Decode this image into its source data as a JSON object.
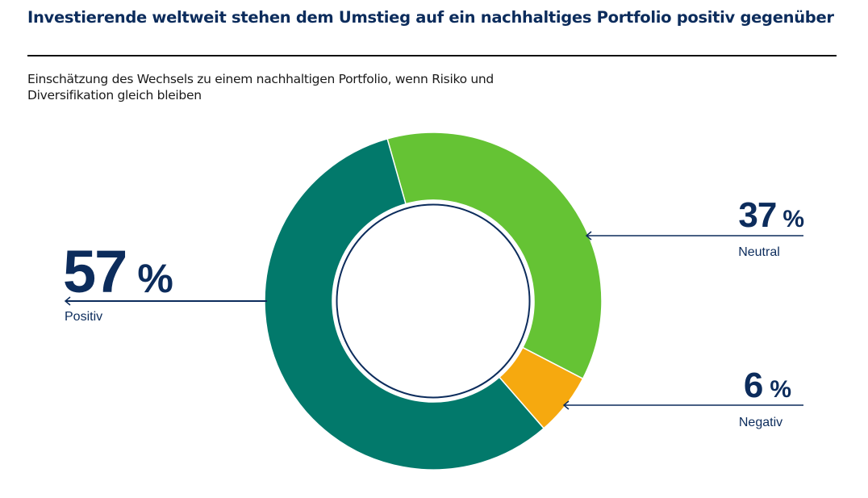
{
  "header": {
    "title": "Investierende weltweit stehen dem Umstieg auf ein nachhaltiges Portfolio positiv gegenüber",
    "subtitle": "Einschätzung des Wechsels zu einem nachhaltigen Portfolio, wenn Risiko und Diversifikation gleich bleiben"
  },
  "colors": {
    "positive": "#02796b",
    "neutral": "#65c334",
    "negative": "#f6a90f",
    "text": "#0c2c5c",
    "separator": "#ffffff"
  },
  "chart_data": {
    "type": "pie",
    "subtype": "donut",
    "title": "Investierende weltweit stehen dem Umstieg auf ein nachhaltiges Portfolio positiv gegenüber",
    "subtitle": "Einschätzung des Wechsels zu einem nachhaltigen Portfolio, wenn Risiko und Diversifikation gleich bleiben",
    "unit": "%",
    "slices": [
      {
        "key": "neutral",
        "label": "Neutral",
        "value": 37,
        "display": "37",
        "unit": "%",
        "color": "#65c334",
        "label_side": "right"
      },
      {
        "key": "negative",
        "label": "Negativ",
        "value": 6,
        "display": "6",
        "unit": "%",
        "color": "#f6a90f",
        "label_side": "right"
      },
      {
        "key": "positive",
        "label": "Positiv",
        "value": 57,
        "display": "57",
        "unit": "%",
        "color": "#02796b",
        "label_side": "left"
      }
    ],
    "start_angle_deg": -15.8,
    "direction": "clockwise",
    "legend": "none",
    "annotations": "callout labels with arrows"
  }
}
